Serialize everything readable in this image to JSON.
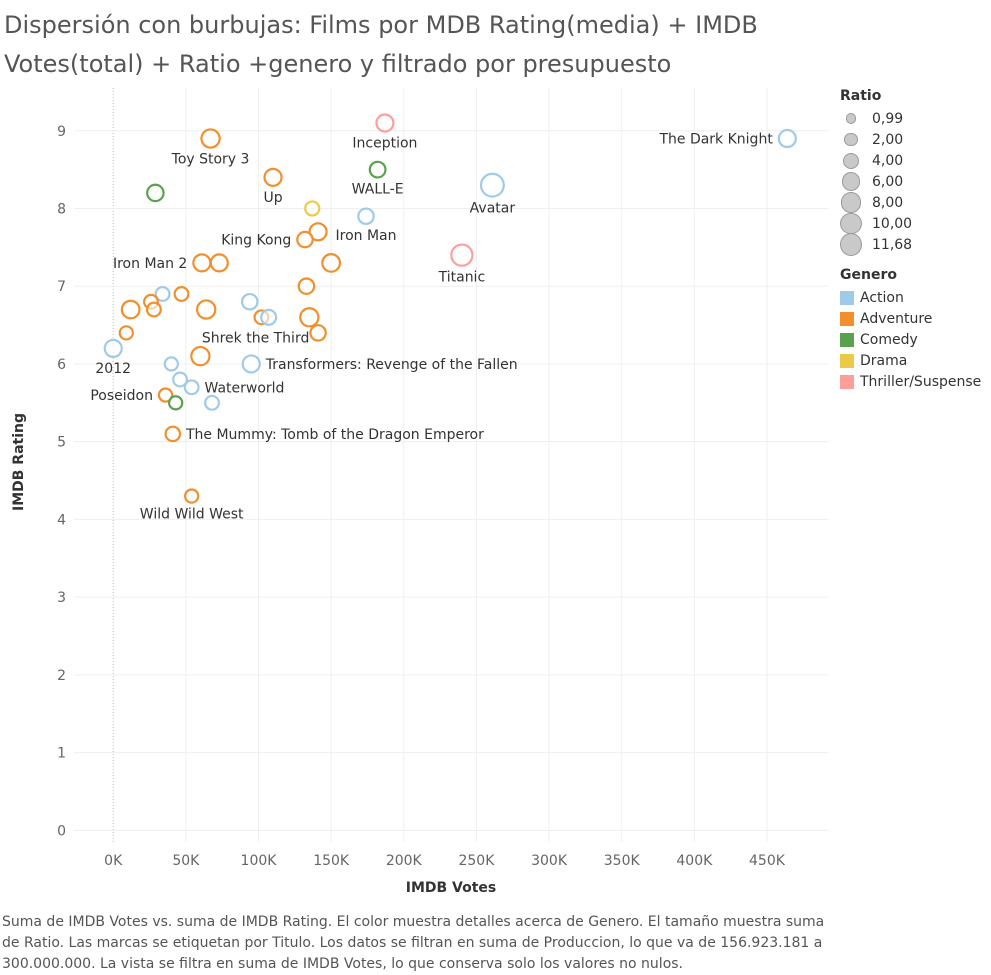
{
  "title": "Dispersión con burbujas: Films por MDB Rating(media) + IMDB Votes(total) + Ratio +genero y filtrado por presupuesto",
  "caption": "Suma de IMDB Votes vs. suma de IMDB Rating.  El color muestra detalles acerca de Genero.  El tamaño muestra suma de Ratio.  Las marcas se etiquetan por Titulo. Los datos se filtran en suma de Produccion, lo que va de 156.923.181 a 300.000.000. La vista se filtra en suma de IMDB Votes, lo que conserva solo los valores no nulos.",
  "legend": {
    "size_title": "Ratio",
    "size_items": [
      {
        "label": "0,99",
        "value": 0.99
      },
      {
        "label": "2,00",
        "value": 2.0
      },
      {
        "label": "4,00",
        "value": 4.0
      },
      {
        "label": "6,00",
        "value": 6.0
      },
      {
        "label": "8,00",
        "value": 8.0
      },
      {
        "label": "10,00",
        "value": 10.0
      },
      {
        "label": "11,68",
        "value": 11.68
      }
    ],
    "color_title": "Genero",
    "color_items": [
      {
        "label": "Action",
        "color": "#a0cbe8"
      },
      {
        "label": "Adventure",
        "color": "#f28e2b"
      },
      {
        "label": "Comedy",
        "color": "#59a14f"
      },
      {
        "label": "Drama",
        "color": "#edc948"
      },
      {
        "label": "Thriller/Suspense",
        "color": "#ff9d9a"
      }
    ]
  },
  "chart_data": {
    "type": "scatter",
    "title": "Dispersión con burbujas: Films por MDB Rating(media) + IMDB Votes(total) + Ratio +genero y filtrado por presupuesto",
    "xlabel": "IMDB Votes",
    "ylabel": "IMDB Rating",
    "xlim": [
      -27000,
      492000
    ],
    "ylim": [
      -0.15,
      9.55
    ],
    "x_ticks": [
      {
        "value": 0,
        "label": "0K"
      },
      {
        "value": 50000,
        "label": "50K"
      },
      {
        "value": 100000,
        "label": "100K"
      },
      {
        "value": 150000,
        "label": "150K"
      },
      {
        "value": 200000,
        "label": "200K"
      },
      {
        "value": 250000,
        "label": "250K"
      },
      {
        "value": 300000,
        "label": "300K"
      },
      {
        "value": 350000,
        "label": "350K"
      },
      {
        "value": 400000,
        "label": "400K"
      },
      {
        "value": 450000,
        "label": "450K"
      }
    ],
    "y_ticks": [
      {
        "value": 0,
        "label": "0"
      },
      {
        "value": 1,
        "label": "1"
      },
      {
        "value": 2,
        "label": "2"
      },
      {
        "value": 3,
        "label": "3"
      },
      {
        "value": 4,
        "label": "4"
      },
      {
        "value": 5,
        "label": "5"
      },
      {
        "value": 6,
        "label": "6"
      },
      {
        "value": 7,
        "label": "7"
      },
      {
        "value": 8,
        "label": "8"
      },
      {
        "value": 9,
        "label": "9"
      }
    ],
    "grid": true,
    "legend_position": "right",
    "points": [
      {
        "x": 464000,
        "y": 8.9,
        "genre": "Action",
        "ratio": 4.0,
        "label": "The Dark Knight",
        "label_pos": "left"
      },
      {
        "x": 187000,
        "y": 9.1,
        "genre": "Thriller/Suspense",
        "ratio": 4.0,
        "label": "Inception",
        "label_pos": "below"
      },
      {
        "x": 67000,
        "y": 8.9,
        "genre": "Adventure",
        "ratio": 5.0,
        "label": "Toy Story 3",
        "label_pos": "below"
      },
      {
        "x": 182000,
        "y": 8.5,
        "genre": "Comedy",
        "ratio": 3.0,
        "label": "WALL-E",
        "label_pos": "below"
      },
      {
        "x": 110000,
        "y": 8.4,
        "genre": "Adventure",
        "ratio": 4.0,
        "label": "Up",
        "label_pos": "below"
      },
      {
        "x": 29000,
        "y": 8.2,
        "genre": "Comedy",
        "ratio": 3.5,
        "label": "",
        "label_pos": "none"
      },
      {
        "x": 261000,
        "y": 8.3,
        "genre": "Action",
        "ratio": 10.0,
        "label": "Avatar",
        "label_pos": "below"
      },
      {
        "x": 137000,
        "y": 8.0,
        "genre": "Drama",
        "ratio": 2.0,
        "label": "",
        "label_pos": "none"
      },
      {
        "x": 174000,
        "y": 7.9,
        "genre": "Action",
        "ratio": 2.8,
        "label": "Iron Man",
        "label_pos": "below"
      },
      {
        "x": 141000,
        "y": 7.7,
        "genre": "Adventure",
        "ratio": 4.0,
        "label": "",
        "label_pos": "none"
      },
      {
        "x": 132000,
        "y": 7.6,
        "genre": "Adventure",
        "ratio": 2.8,
        "label": "King Kong",
        "label_pos": "left"
      },
      {
        "x": 240000,
        "y": 7.4,
        "genre": "Thriller/Suspense",
        "ratio": 8.0,
        "label": "Titanic",
        "label_pos": "below"
      },
      {
        "x": 61000,
        "y": 7.3,
        "genre": "Adventure",
        "ratio": 4.0,
        "label": "Iron Man 2",
        "label_pos": "left"
      },
      {
        "x": 73000,
        "y": 7.3,
        "genre": "Adventure",
        "ratio": 4.0,
        "label": "",
        "label_pos": "none"
      },
      {
        "x": 150000,
        "y": 7.3,
        "genre": "Adventure",
        "ratio": 4.5,
        "label": "",
        "label_pos": "none"
      },
      {
        "x": 133000,
        "y": 7.0,
        "genre": "Adventure",
        "ratio": 2.8,
        "label": "",
        "label_pos": "none"
      },
      {
        "x": 47000,
        "y": 6.9,
        "genre": "Adventure",
        "ratio": 1.8,
        "label": "",
        "label_pos": "none"
      },
      {
        "x": 34000,
        "y": 6.9,
        "genre": "Action",
        "ratio": 1.8,
        "label": "",
        "label_pos": "none"
      },
      {
        "x": 26000,
        "y": 6.8,
        "genre": "Adventure",
        "ratio": 1.8,
        "label": "",
        "label_pos": "none"
      },
      {
        "x": 94000,
        "y": 6.8,
        "genre": "Action",
        "ratio": 2.8,
        "label": "",
        "label_pos": "none"
      },
      {
        "x": 12000,
        "y": 6.7,
        "genre": "Adventure",
        "ratio": 4.5,
        "label": "",
        "label_pos": "none"
      },
      {
        "x": 28000,
        "y": 6.7,
        "genre": "Adventure",
        "ratio": 1.8,
        "label": "",
        "label_pos": "none"
      },
      {
        "x": 64000,
        "y": 6.7,
        "genre": "Adventure",
        "ratio": 5.0,
        "label": "",
        "label_pos": "none"
      },
      {
        "x": 102000,
        "y": 6.6,
        "genre": "Adventure",
        "ratio": 1.8,
        "label": "",
        "label_pos": "none"
      },
      {
        "x": 107000,
        "y": 6.6,
        "genre": "Action",
        "ratio": 2.5,
        "label": "",
        "label_pos": "none"
      },
      {
        "x": 135000,
        "y": 6.6,
        "genre": "Adventure",
        "ratio": 5.0,
        "label": "Shrek the Third",
        "label_pos": "belowleft"
      },
      {
        "x": 9000,
        "y": 6.4,
        "genre": "Adventure",
        "ratio": 1.5,
        "label": "",
        "label_pos": "none"
      },
      {
        "x": 141000,
        "y": 6.4,
        "genre": "Adventure",
        "ratio": 2.8,
        "label": "",
        "label_pos": "none"
      },
      {
        "x": 0,
        "y": 6.2,
        "genre": "Action",
        "ratio": 4.0,
        "label": "2012",
        "label_pos": "below"
      },
      {
        "x": 60000,
        "y": 6.1,
        "genre": "Adventure",
        "ratio": 5.0,
        "label": "",
        "label_pos": "none"
      },
      {
        "x": 95000,
        "y": 6.0,
        "genre": "Action",
        "ratio": 4.0,
        "label": "Transformers: Revenge of the Fallen",
        "label_pos": "right"
      },
      {
        "x": 40000,
        "y": 6.0,
        "genre": "Action",
        "ratio": 1.5,
        "label": "",
        "label_pos": "none"
      },
      {
        "x": 46000,
        "y": 5.8,
        "genre": "Action",
        "ratio": 1.8,
        "label": "",
        "label_pos": "none"
      },
      {
        "x": 54000,
        "y": 5.7,
        "genre": "Action",
        "ratio": 1.8,
        "label": "Waterworld",
        "label_pos": "right"
      },
      {
        "x": 36000,
        "y": 5.6,
        "genre": "Adventure",
        "ratio": 1.5,
        "label": "Poseidon",
        "label_pos": "left"
      },
      {
        "x": 43000,
        "y": 5.5,
        "genre": "Comedy",
        "ratio": 1.5,
        "label": "",
        "label_pos": "none"
      },
      {
        "x": 68000,
        "y": 5.5,
        "genre": "Action",
        "ratio": 1.8,
        "label": "",
        "label_pos": "none"
      },
      {
        "x": 41000,
        "y": 5.1,
        "genre": "Adventure",
        "ratio": 2.2,
        "label": "The Mummy: Tomb of the Dragon Emperor",
        "label_pos": "right"
      },
      {
        "x": 54000,
        "y": 4.3,
        "genre": "Adventure",
        "ratio": 1.5,
        "label": "Wild Wild West",
        "label_pos": "below"
      }
    ]
  }
}
